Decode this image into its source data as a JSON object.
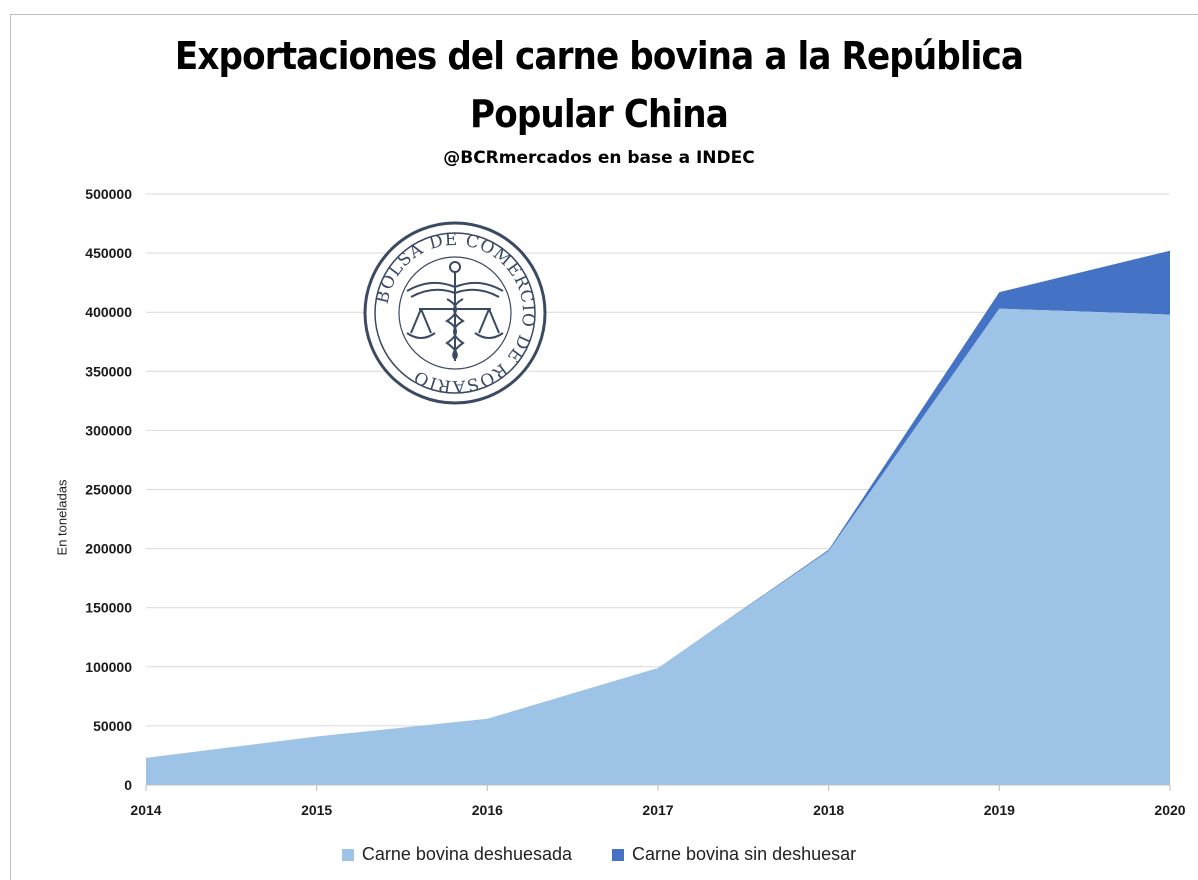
{
  "title_line1": "Exportaciones del carne bovina a la República",
  "title_line2": "Popular China",
  "subtitle": "@BCRmercados en base a INDEC",
  "logo": {
    "text": "BOLSA DE COMERCIO DE ROSARIO"
  },
  "colors": {
    "deshuesada": "#9DC3E6",
    "sin_deshuesar": "#4472C4",
    "grid": "#d9d9d9"
  },
  "chart_data": {
    "type": "area",
    "stacked": true,
    "title": "Exportaciones del carne bovina a la República Popular China",
    "subtitle": "@BCRmercados en base a INDEC",
    "xlabel": "",
    "ylabel": "En toneladas",
    "categories": [
      "2014",
      "2015",
      "2016",
      "2017",
      "2018",
      "2019",
      "2020"
    ],
    "series": [
      {
        "name": "Carne bovina deshuesada",
        "values": [
          23000,
          41000,
          56000,
          99000,
          198000,
          403000,
          398000
        ]
      },
      {
        "name": "Carne bovina sin deshuesar",
        "values": [
          0,
          0,
          0,
          0,
          1000,
          14000,
          54000
        ]
      }
    ],
    "ylim": [
      0,
      500000
    ],
    "yticks": [
      "0",
      "50000",
      "100000",
      "150000",
      "200000",
      "250000",
      "300000",
      "350000",
      "400000",
      "450000",
      "500000"
    ],
    "grid": true,
    "legend_position": "bottom"
  }
}
